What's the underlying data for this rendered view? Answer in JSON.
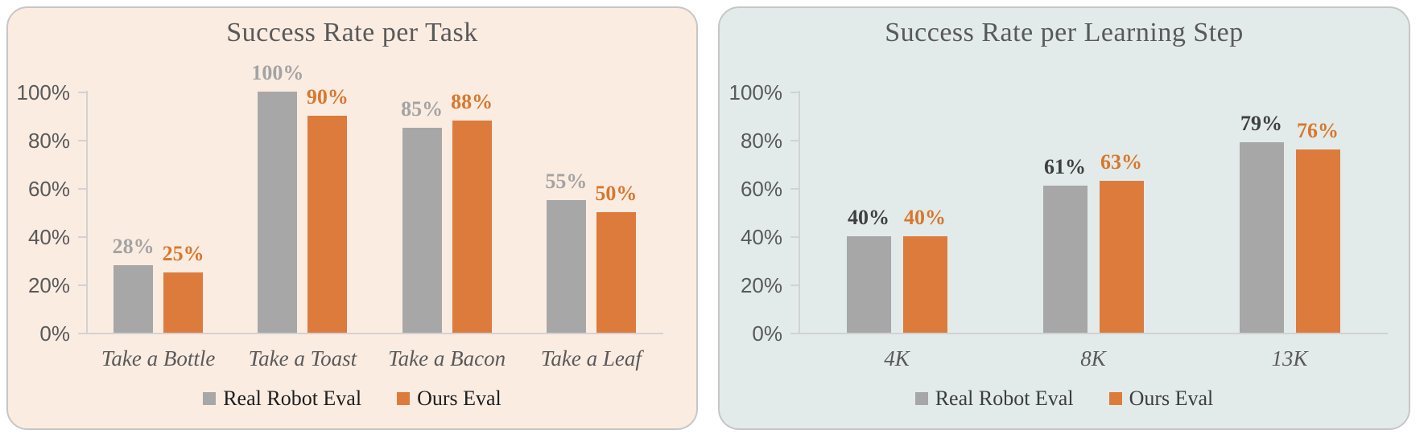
{
  "style": {
    "page_bg": "#ffffff",
    "panel_border": "#c6c6c6",
    "axis_color": "#d2d2d2",
    "axis_text_color": "#595959",
    "title_color": "#595959"
  },
  "chart_data": [
    {
      "type": "bar",
      "title": "Success Rate per Task",
      "panel_bg": "#fbece2",
      "categories": [
        "Take a Bottle",
        "Take a Toast",
        "Take a Bacon",
        "Take a Leaf"
      ],
      "series": [
        {
          "name": "Real Robot Eval",
          "color": "#a7a7a7",
          "label_color": "#a3a3a3",
          "values": [
            28,
            100,
            85,
            55
          ],
          "labels": [
            "28%",
            "100%",
            "85%",
            "55%"
          ]
        },
        {
          "name": "Ours Eval",
          "color": "#dd7b3d",
          "label_color": "#d8772c",
          "values": [
            25,
            90,
            88,
            50
          ],
          "labels": [
            "25%",
            "90%",
            "88%",
            "50%"
          ]
        }
      ],
      "xlabel": "",
      "ylabel": "",
      "ylim": [
        0,
        100
      ],
      "ytick_values": [
        0,
        20,
        40,
        60,
        80,
        100
      ],
      "ytick_labels": [
        "0%",
        "20%",
        "40%",
        "60%",
        "80%",
        "100%"
      ],
      "grid": false,
      "legend_position": "bottom",
      "legend_text_color": "#1e1e1e"
    },
    {
      "type": "bar",
      "title": "Success Rate per Learning Step",
      "panel_bg": "#e2ebea",
      "categories": [
        "4K",
        "8K",
        "13K"
      ],
      "series": [
        {
          "name": "Real Robot Eval",
          "color": "#a7a7a7",
          "label_color": "#3f3f3f",
          "values": [
            40,
            61,
            79
          ],
          "labels": [
            "40%",
            "61%",
            "79%"
          ]
        },
        {
          "name": "Ours Eval",
          "color": "#dd7b3d",
          "label_color": "#d8772c",
          "values": [
            40,
            63,
            76
          ],
          "labels": [
            "40%",
            "63%",
            "76%"
          ]
        }
      ],
      "xlabel": "",
      "ylabel": "",
      "ylim": [
        0,
        100
      ],
      "ytick_values": [
        0,
        20,
        40,
        60,
        80,
        100
      ],
      "ytick_labels": [
        "0%",
        "20%",
        "40%",
        "60%",
        "80%",
        "100%"
      ],
      "grid": false,
      "legend_position": "bottom",
      "legend_text_color": "#3d3d3d"
    }
  ]
}
